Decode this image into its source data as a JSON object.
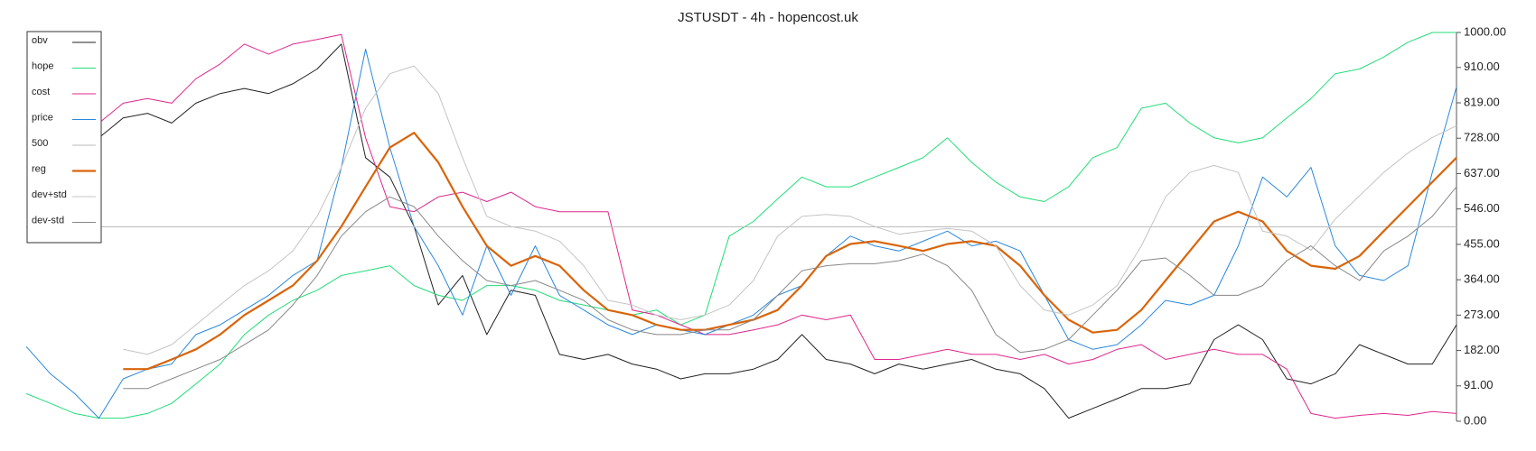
{
  "chart_data": {
    "type": "line",
    "title": "JSTUSDT - 4h - hopencost.uk",
    "categories": [
      null,
      null,
      null,
      null,
      null,
      null,
      null,
      null,
      null,
      null,
      null,
      null,
      null,
      null,
      null,
      null,
      null,
      null,
      null,
      null,
      null,
      null,
      null,
      null,
      null,
      null,
      null,
      null,
      null,
      null,
      null,
      null,
      null,
      null,
      null,
      null,
      null,
      null,
      null,
      null,
      null,
      null,
      null,
      null,
      null,
      null,
      null,
      null,
      null,
      null,
      null,
      null,
      null,
      null,
      null,
      null,
      null,
      null,
      null,
      null
    ],
    "ylim": [
      0,
      1000
    ],
    "yticks": [
      {
        "value": 0,
        "label": "0.00"
      },
      {
        "value": 91,
        "label": "91.00"
      },
      {
        "value": 182,
        "label": "182.00"
      },
      {
        "value": 273,
        "label": "273.00"
      },
      {
        "value": 364,
        "label": "364.00"
      },
      {
        "value": 455,
        "label": "455.00"
      },
      {
        "value": 546,
        "label": "546.00"
      },
      {
        "value": 637,
        "label": "637.00"
      },
      {
        "value": 728,
        "label": "728.00"
      },
      {
        "value": 819,
        "label": "819.00"
      },
      {
        "value": 910,
        "label": "910.00"
      },
      {
        "value": 1000,
        "label": "1000.00"
      }
    ],
    "legend": "upper left",
    "series": [
      {
        "name": "obv",
        "color": "#222222",
        "width": 1,
        "values": [
          null,
          null,
          null,
          729,
          780,
          792,
          767,
          818,
          843,
          856,
          843,
          868,
          906,
          970,
          678,
          628,
          501,
          299,
          375,
          223,
          337,
          324,
          172,
          159,
          172,
          147,
          134,
          109,
          122,
          122,
          134,
          159,
          223,
          159,
          147,
          122,
          147,
          134,
          147,
          159,
          134,
          122,
          84,
          8,
          33,
          58,
          84,
          84,
          96,
          210,
          248,
          210,
          109,
          96,
          122,
          197,
          172,
          147,
          147,
          248
        ]
      },
      {
        "name": "hope",
        "color": "#22dd77",
        "width": 1,
        "values": [
          71,
          46,
          20,
          8,
          8,
          20,
          46,
          96,
          147,
          223,
          273,
          311,
          337,
          375,
          387,
          400,
          349,
          324,
          311,
          349,
          349,
          337,
          311,
          299,
          286,
          273,
          286,
          248,
          273,
          476,
          514,
          572,
          628,
          603,
          603,
          628,
          653,
          678,
          729,
          666,
          615,
          577,
          565,
          603,
          678,
          704,
          805,
          818,
          767,
          729,
          716,
          729,
          780,
          830,
          894,
          906,
          937,
          975,
          1000,
          1000
        ]
      },
      {
        "name": "cost",
        "color": "#e0288c",
        "width": 1,
        "values": [
          null,
          null,
          null,
          767,
          818,
          830,
          818,
          881,
          919,
          970,
          944,
          970,
          982,
          995,
          729,
          552,
          539,
          577,
          589,
          565,
          589,
          552,
          539,
          539,
          539,
          286,
          273,
          248,
          223,
          223,
          235,
          248,
          273,
          261,
          273,
          159,
          159,
          172,
          185,
          172,
          172,
          159,
          172,
          147,
          159,
          185,
          197,
          159,
          172,
          185,
          172,
          172,
          134,
          20,
          8,
          15,
          20,
          15,
          25,
          20
        ]
      },
      {
        "name": "price",
        "color": "#2a88dd",
        "width": 1,
        "values": [
          192,
          122,
          71,
          8,
          109,
          134,
          147,
          223,
          248,
          286,
          324,
          375,
          413,
          653,
          957,
          704,
          501,
          400,
          273,
          451,
          324,
          451,
          324,
          286,
          248,
          223,
          248,
          235,
          223,
          248,
          273,
          324,
          349,
          425,
          476,
          451,
          438,
          463,
          489,
          451,
          463,
          438,
          324,
          210,
          185,
          197,
          248,
          311,
          299,
          324,
          451,
          628,
          577,
          653,
          451,
          375,
          362,
          400,
          640,
          860
        ]
      },
      {
        "name": "500",
        "color": "#bbbbbb",
        "width": 1,
        "values": [
          500,
          500,
          500,
          500,
          500,
          500,
          500,
          500,
          500,
          500,
          500,
          500,
          500,
          500,
          500,
          500,
          500,
          500,
          500,
          500,
          500,
          500,
          500,
          500,
          500,
          500,
          500,
          500,
          500,
          500,
          500,
          500,
          500,
          500,
          500,
          500,
          500,
          500,
          500,
          500,
          500,
          500,
          500,
          500,
          500,
          500,
          500,
          500,
          500,
          500,
          500,
          500,
          500,
          500,
          500,
          500,
          500,
          500,
          500,
          500
        ]
      },
      {
        "name": "reg",
        "color": "#d9640a",
        "width": 2.2,
        "values": [
          null,
          null,
          null,
          null,
          134,
          134,
          159,
          185,
          223,
          273,
          311,
          349,
          413,
          501,
          603,
          704,
          742,
          666,
          552,
          451,
          400,
          425,
          400,
          337,
          286,
          273,
          248,
          235,
          235,
          248,
          261,
          286,
          349,
          425,
          456,
          463,
          451,
          438,
          456,
          463,
          451,
          400,
          324,
          261,
          228,
          235,
          286,
          362,
          438,
          514,
          539,
          514,
          438,
          400,
          392,
          425,
          489,
          552,
          615,
          678
        ]
      },
      {
        "name": "dev+std",
        "color": "#c4c4c4",
        "width": 1,
        "values": [
          null,
          null,
          null,
          null,
          185,
          172,
          197,
          248,
          299,
          349,
          387,
          438,
          527,
          653,
          805,
          894,
          914,
          843,
          678,
          527,
          501,
          489,
          463,
          400,
          311,
          299,
          273,
          261,
          273,
          299,
          362,
          476,
          527,
          532,
          527,
          501,
          481,
          489,
          496,
          489,
          451,
          349,
          286,
          273,
          299,
          349,
          451,
          577,
          640,
          658,
          640,
          489,
          476,
          440,
          520,
          580,
          640,
          690,
          730,
          760
        ]
      },
      {
        "name": "dev-std",
        "color": "#888888",
        "width": 1,
        "values": [
          null,
          null,
          null,
          null,
          84,
          84,
          109,
          134,
          159,
          197,
          235,
          299,
          375,
          476,
          539,
          577,
          552,
          476,
          413,
          362,
          349,
          362,
          337,
          311,
          261,
          235,
          223,
          223,
          235,
          235,
          261,
          324,
          387,
          400,
          405,
          405,
          413,
          430,
          400,
          337,
          223,
          177,
          185,
          210,
          273,
          337,
          413,
          420,
          375,
          324,
          324,
          349,
          413,
          451,
          400,
          362,
          438,
          476,
          527,
          603
        ]
      }
    ]
  }
}
